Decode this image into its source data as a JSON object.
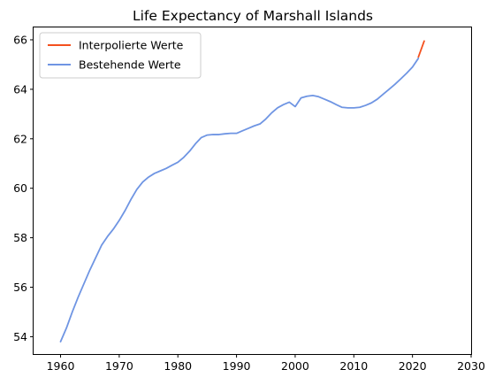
{
  "chart_data": {
    "type": "line",
    "title": "Life Expectancy of Marshall Islands",
    "xlabel": "",
    "ylabel": "",
    "xlim": [
      1955.4,
      2030
    ],
    "ylim": [
      53.3,
      66.5
    ],
    "xticks": [
      1960,
      1970,
      1980,
      1990,
      2000,
      2010,
      2020,
      2030
    ],
    "yticks": [
      54,
      56,
      58,
      60,
      62,
      64,
      66
    ],
    "grid": false,
    "legend_position": "top-left",
    "series": [
      {
        "name": "Interpolierte Werte",
        "color": "#f4511e",
        "x": [
          2021,
          2022
        ],
        "y": [
          65.3,
          65.95
        ]
      },
      {
        "name": "Bestehende Werte",
        "color": "#6f95e3",
        "x": [
          1960,
          1961,
          1962,
          1963,
          1964,
          1965,
          1966,
          1967,
          1968,
          1969,
          1970,
          1971,
          1972,
          1973,
          1974,
          1975,
          1976,
          1977,
          1978,
          1979,
          1980,
          1981,
          1982,
          1983,
          1984,
          1985,
          1986,
          1987,
          1988,
          1989,
          1990,
          1991,
          1992,
          1993,
          1994,
          1995,
          1996,
          1997,
          1998,
          1999,
          2000,
          2001,
          2002,
          2003,
          2004,
          2005,
          2006,
          2007,
          2008,
          2009,
          2010,
          2011,
          2012,
          2013,
          2014,
          2015,
          2016,
          2017,
          2018,
          2019,
          2020,
          2021
        ],
        "y": [
          53.8,
          54.35,
          55.0,
          55.6,
          56.15,
          56.7,
          57.2,
          57.7,
          58.05,
          58.35,
          58.7,
          59.1,
          59.55,
          59.95,
          60.25,
          60.45,
          60.6,
          60.7,
          60.8,
          60.93,
          61.05,
          61.25,
          61.5,
          61.8,
          62.05,
          62.15,
          62.17,
          62.17,
          62.2,
          62.22,
          62.22,
          62.32,
          62.42,
          62.52,
          62.6,
          62.8,
          63.05,
          63.25,
          63.38,
          63.48,
          63.3,
          63.65,
          63.72,
          63.75,
          63.7,
          63.6,
          63.5,
          63.38,
          63.27,
          63.25,
          63.25,
          63.27,
          63.35,
          63.45,
          63.6,
          63.8,
          64.0,
          64.2,
          64.42,
          64.65,
          64.9,
          65.25
        ]
      }
    ]
  }
}
